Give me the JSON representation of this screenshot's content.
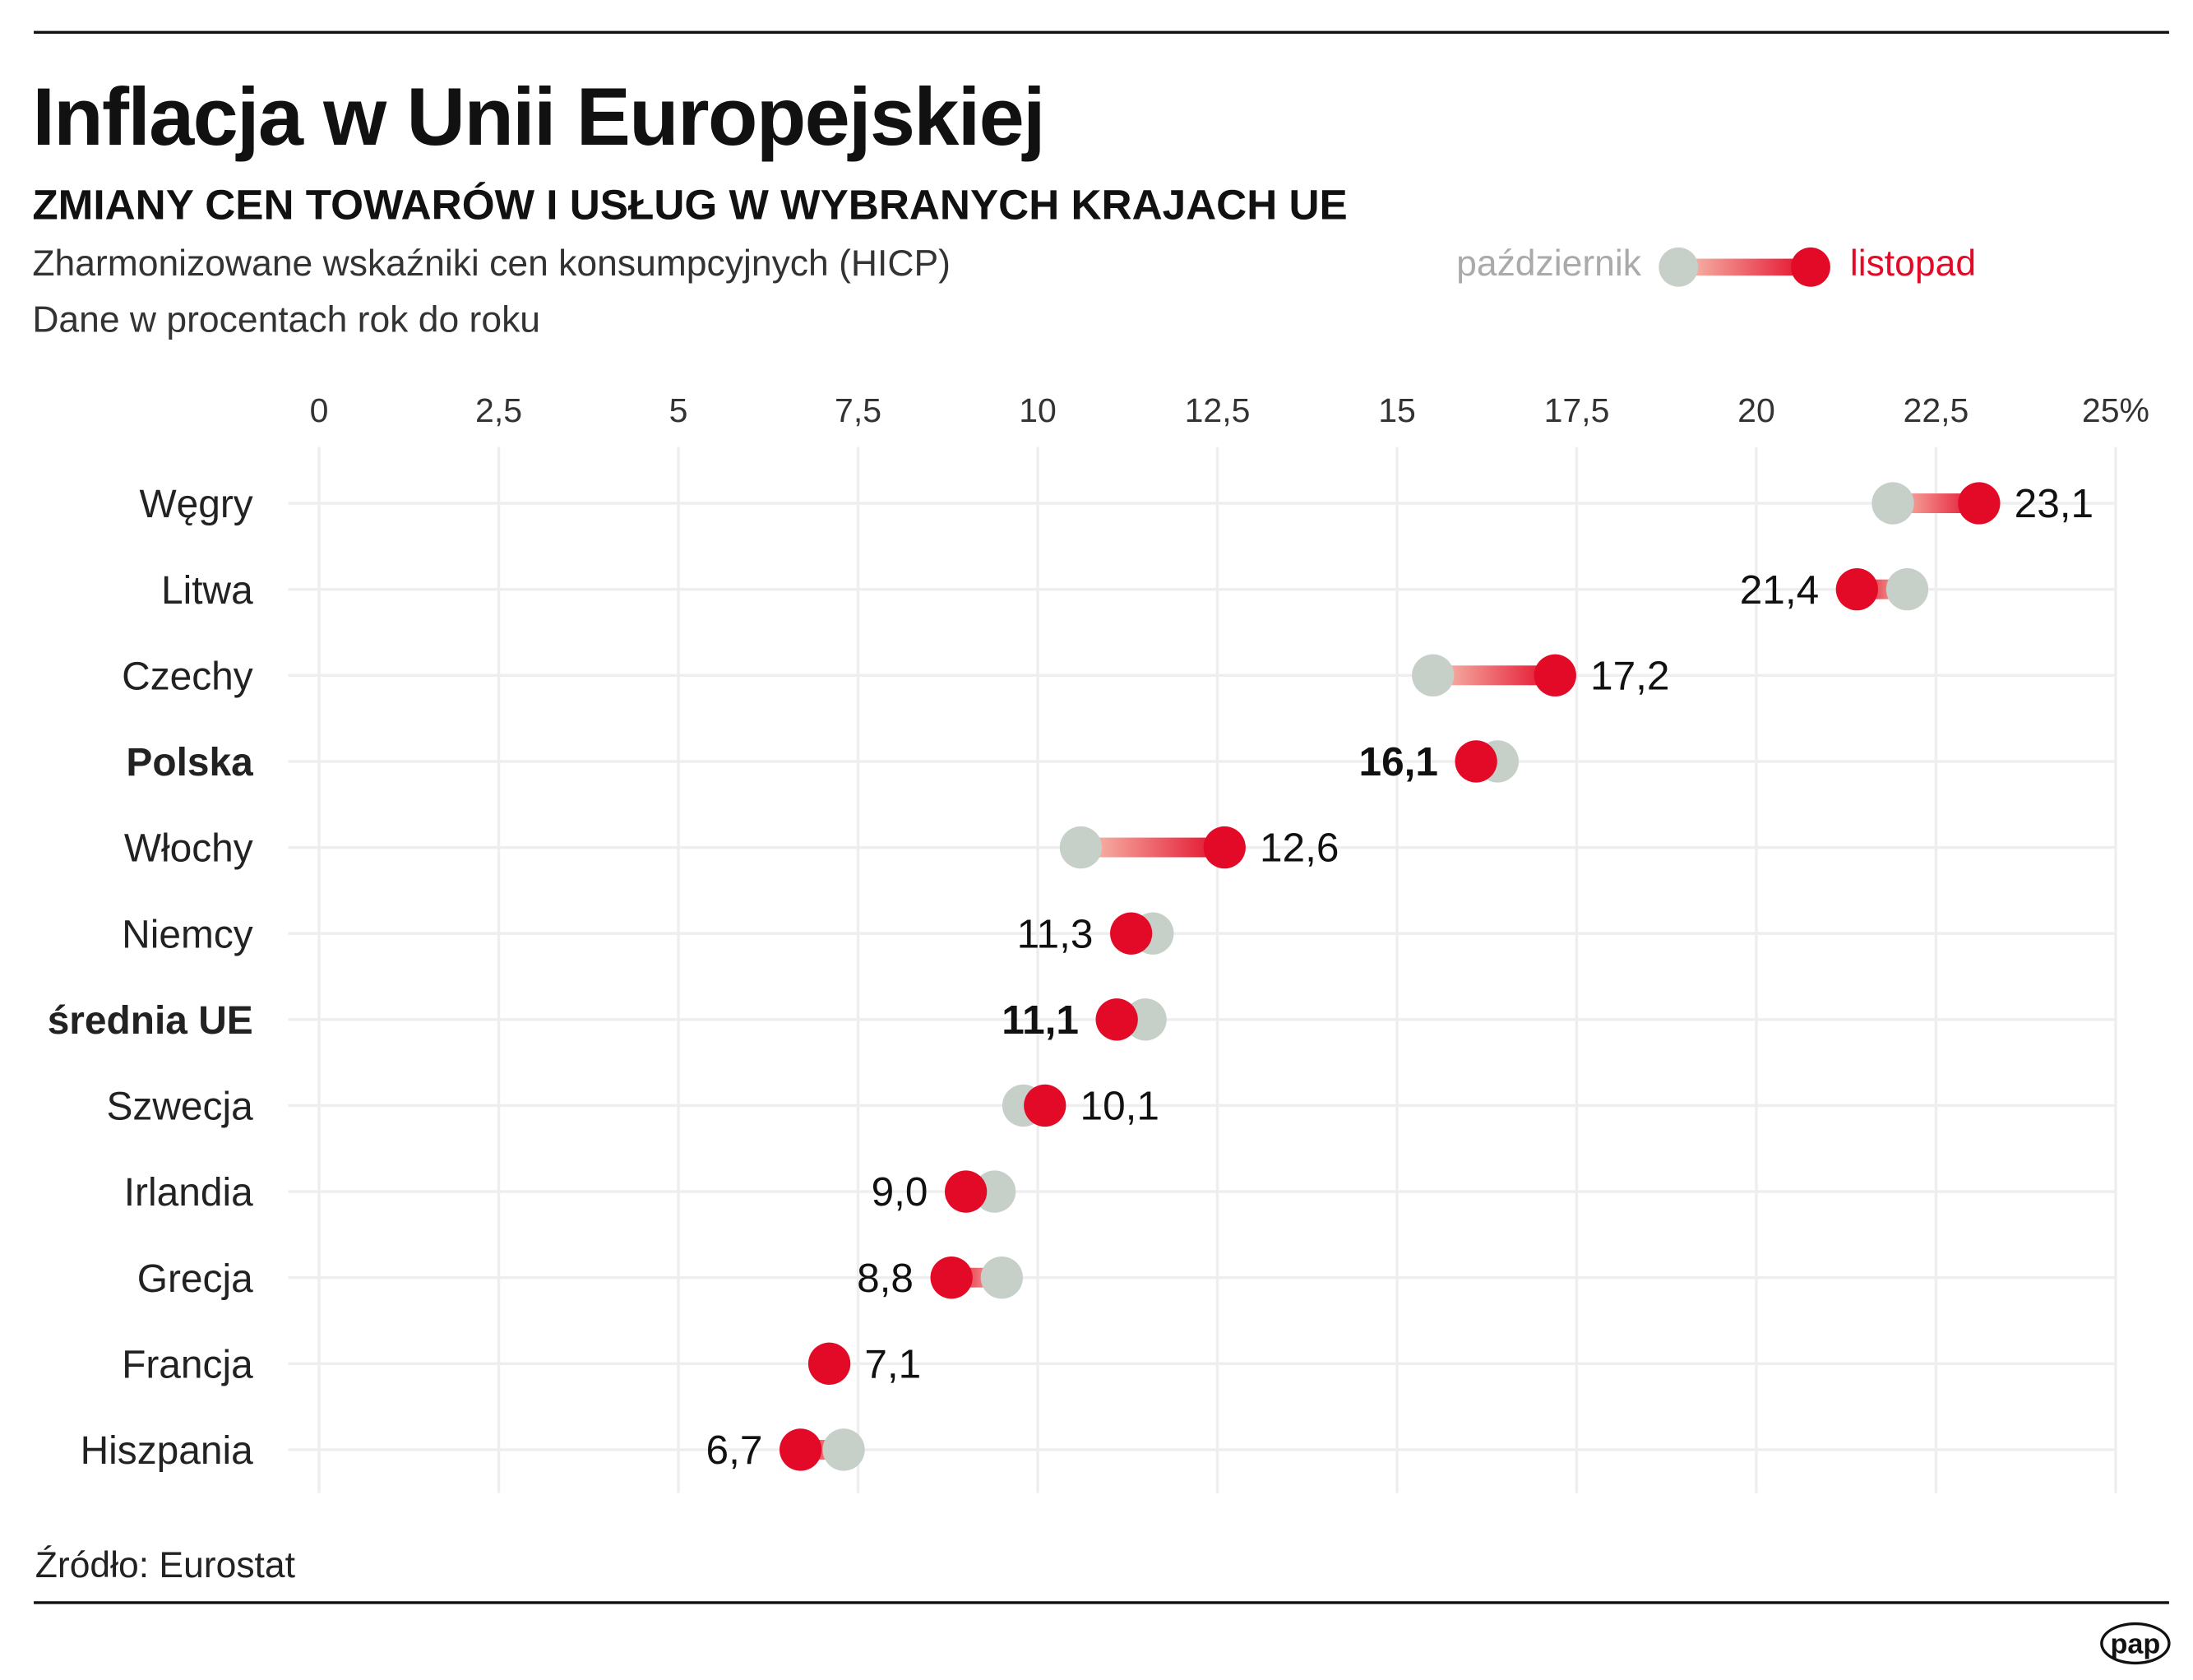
{
  "title": "Inflacja w Unii Europejskiej",
  "subtitle": "ZMIANY CEN TOWARÓW I USŁUG W WYBRANYCH KRAJACH UE",
  "description": [
    "Zharmonizowane wskaźniki cen konsumpcyjnych (HICP)",
    "Dane w procentach rok do roku"
  ],
  "source": "Źródło: Eurostat",
  "logo": "pap",
  "colors": {
    "october": "#c6cfc8",
    "november": "#e30a28",
    "gradient_start": "#f8c3b3",
    "gridline": "#eeeeee",
    "text": "#111111"
  },
  "chart_data": {
    "type": "dumbbell",
    "xlim": [
      0,
      25
    ],
    "x_ticks": [
      0,
      2.5,
      5,
      7.5,
      10,
      12.5,
      15,
      17.5,
      20,
      22.5,
      25
    ],
    "x_tick_labels": [
      "0",
      "2,5",
      "5",
      "7,5",
      "10",
      "12,5",
      "15",
      "17,5",
      "20",
      "22,5",
      "25%"
    ],
    "grid": true,
    "legend": {
      "placement": "top-right",
      "entries": [
        "październik",
        "listopad"
      ]
    },
    "categories": [
      "Węgry",
      "Litwa",
      "Czechy",
      "Polska",
      "Włochy",
      "Niemcy",
      "średnia UE",
      "Szwecja",
      "Irlandia",
      "Grecja",
      "Francja",
      "Hiszpania"
    ],
    "bold_categories": [
      "Polska",
      "średnia UE"
    ],
    "series": [
      {
        "name": "październik",
        "values": [
          21.9,
          22.1,
          15.5,
          16.4,
          10.6,
          11.6,
          11.5,
          9.8,
          9.4,
          9.5,
          7.1,
          7.3
        ]
      },
      {
        "name": "listopad",
        "values": [
          23.1,
          21.4,
          17.2,
          16.1,
          12.6,
          11.3,
          11.1,
          10.1,
          9.0,
          8.8,
          7.1,
          6.7
        ]
      }
    ],
    "data_labels": [
      "23,1",
      "21,4",
      "17,2",
      "16,1",
      "12,6",
      "11,3",
      "11,1",
      "10,1",
      "9,0",
      "8,8",
      "7,1",
      "6,7"
    ]
  }
}
